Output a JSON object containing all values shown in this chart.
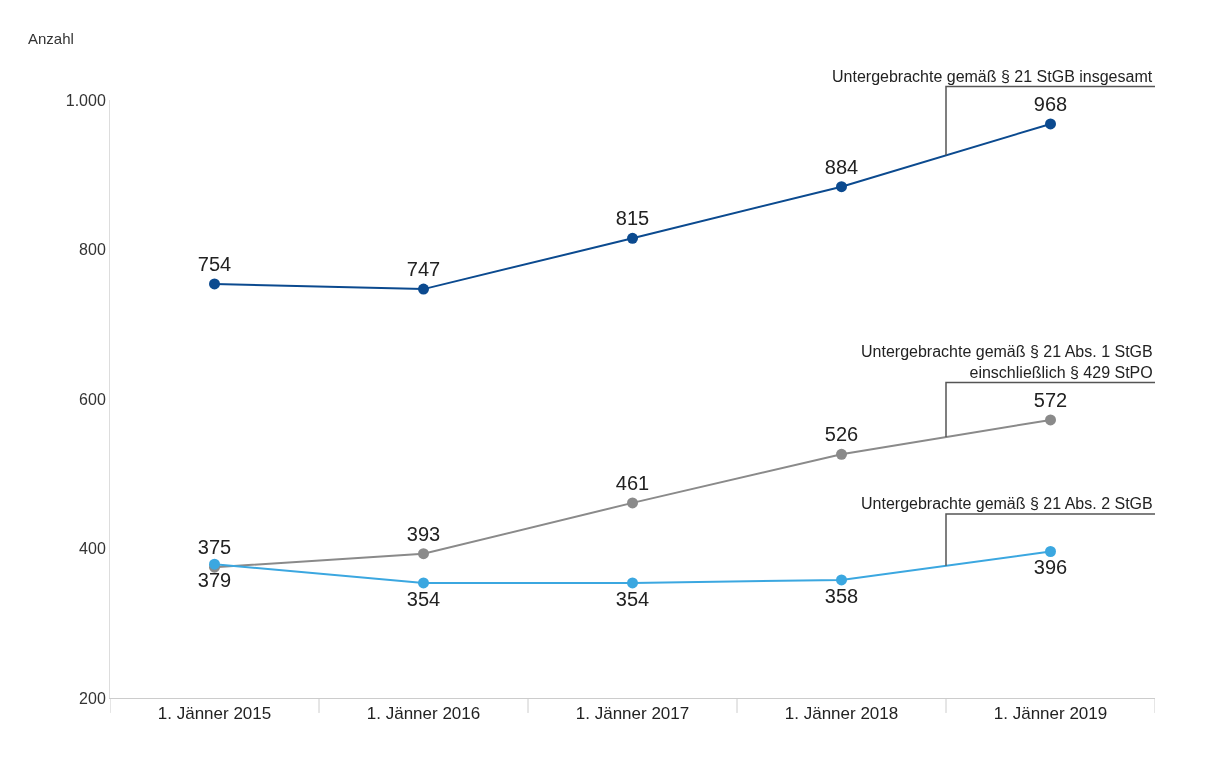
{
  "chart_data": {
    "type": "line",
    "ylabel": "Anzahl",
    "categories": [
      "1. Jänner 2015",
      "1. Jänner 2016",
      "1. Jänner 2017",
      "1. Jänner 2018",
      "1. Jänner 2019"
    ],
    "series": [
      {
        "name": "Untergebrachte gemäß § 21 StGB insgesamt",
        "color": "#0b4a8f",
        "values": [
          754,
          747,
          815,
          884,
          968
        ]
      },
      {
        "name": "Untergebrachte gemäß § 21 Abs. 1 StGB einschließlich § 429 StPO",
        "color": "#8a8a8a",
        "values": [
          375,
          393,
          461,
          526,
          572
        ]
      },
      {
        "name": "Untergebrachte gemäß § 21 Abs. 2 StGB",
        "color": "#3ba7e0",
        "values": [
          379,
          354,
          354,
          358,
          396
        ]
      }
    ],
    "ylim": [
      200,
      1000
    ],
    "yticks": [
      200,
      400,
      600,
      800,
      {
        "value": 1000,
        "label": "1.000"
      }
    ],
    "data_labels": true,
    "marker": "circle",
    "line_style": "solid",
    "legend": false
  }
}
